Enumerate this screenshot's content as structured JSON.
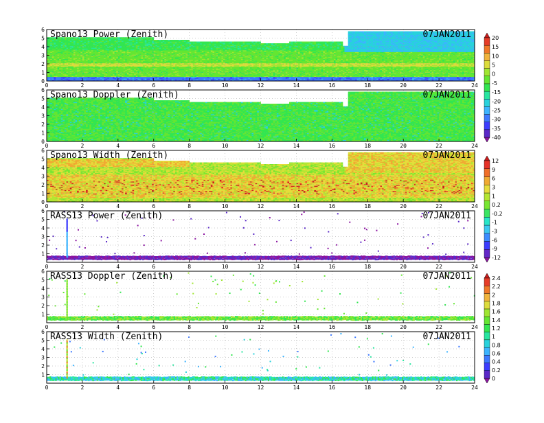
{
  "palettes": {
    "dbz": [
      "#8b14a0",
      "#5a28c8",
      "#3c3cff",
      "#3c78ff",
      "#3cb4ff",
      "#28d2dc",
      "#28e6a0",
      "#32e650",
      "#64e632",
      "#a0e632",
      "#dcdc3c",
      "#f0b43c",
      "#f07828",
      "#e63c28",
      "#c81e1e"
    ],
    "width": [
      "#8b14a0",
      "#6428c8",
      "#3c3cff",
      "#3c8cff",
      "#3cc8f0",
      "#28e6c8",
      "#3ce664",
      "#78e632",
      "#b4e632",
      "#e6dc3c",
      "#f0aa32",
      "#f06e28",
      "#e63228",
      "#c81e1e"
    ]
  },
  "chart_data": [
    {
      "id": "spano-power",
      "type": "heatmap",
      "title": "Spano13 Power (Zenith)",
      "date": "07JAN2011",
      "xlim": [
        0,
        24
      ],
      "ylim": [
        0,
        6
      ],
      "xticks": [
        0,
        2,
        4,
        6,
        8,
        10,
        12,
        14,
        16,
        18,
        20,
        22,
        24
      ],
      "yticks": [
        0,
        1,
        2,
        3,
        4,
        5,
        6
      ],
      "colorbar": [
        -40,
        -35,
        -30,
        -25,
        -20,
        -15,
        -5,
        0,
        5,
        10,
        15,
        20
      ]
    },
    {
      "id": "spano-doppler",
      "type": "heatmap",
      "title": "Spano13 Doppler (Zenith)",
      "date": "07JAN2011",
      "xlim": [
        0,
        24
      ],
      "ylim": [
        0,
        6
      ],
      "xticks": [
        0,
        2,
        4,
        6,
        8,
        10,
        12,
        14,
        16,
        18,
        20,
        22,
        24
      ],
      "yticks": [
        0,
        1,
        2,
        3,
        4,
        5,
        6
      ]
    },
    {
      "id": "spano-width",
      "type": "heatmap",
      "title": "Spano13 Width (Zenith)",
      "date": "07JAN2011",
      "xlim": [
        0,
        24
      ],
      "ylim": [
        0,
        6
      ],
      "xticks": [
        0,
        2,
        4,
        6,
        8,
        10,
        12,
        14,
        16,
        18,
        20,
        22,
        24
      ],
      "yticks": [
        0,
        1,
        2,
        3,
        4,
        5,
        6
      ],
      "colorbar": [
        -12,
        -9,
        -6,
        -3,
        -1,
        -0.2,
        0.2,
        1,
        3,
        6,
        9,
        12
      ]
    },
    {
      "id": "rass-power",
      "type": "heatmap",
      "title": "RASS13 Power (Zenith)",
      "date": "07JAN2011",
      "xlim": [
        0,
        24
      ],
      "ylim": [
        0,
        6
      ],
      "xticks": [
        0,
        2,
        4,
        6,
        8,
        10,
        12,
        14,
        16,
        18,
        20,
        22,
        24
      ],
      "yticks": [
        1,
        2,
        3,
        4,
        5,
        6
      ]
    },
    {
      "id": "rass-doppler",
      "type": "heatmap",
      "title": "RASS13 Doppler (Zenith)",
      "date": "07JAN2011",
      "xlim": [
        0,
        24
      ],
      "ylim": [
        0,
        6
      ],
      "xticks": [
        0,
        2,
        4,
        6,
        8,
        10,
        12,
        14,
        16,
        18,
        20,
        22,
        24
      ],
      "yticks": [
        1,
        2,
        3,
        4,
        5,
        6
      ],
      "colorbar": [
        0,
        0.2,
        0.4,
        0.6,
        0.8,
        1,
        1.2,
        1.4,
        1.6,
        1.8,
        2,
        2.2,
        2.4
      ]
    },
    {
      "id": "rass-width",
      "type": "heatmap",
      "title": "RASS13 Width (Zenith)",
      "date": "07JAN2011",
      "xlim": [
        0,
        24
      ],
      "ylim": [
        0,
        6
      ],
      "xticks": [
        0,
        2,
        4,
        6,
        8,
        10,
        12,
        14,
        16,
        18,
        20,
        22,
        24
      ],
      "yticks": [
        1,
        2,
        3,
        4,
        5,
        6
      ]
    }
  ]
}
